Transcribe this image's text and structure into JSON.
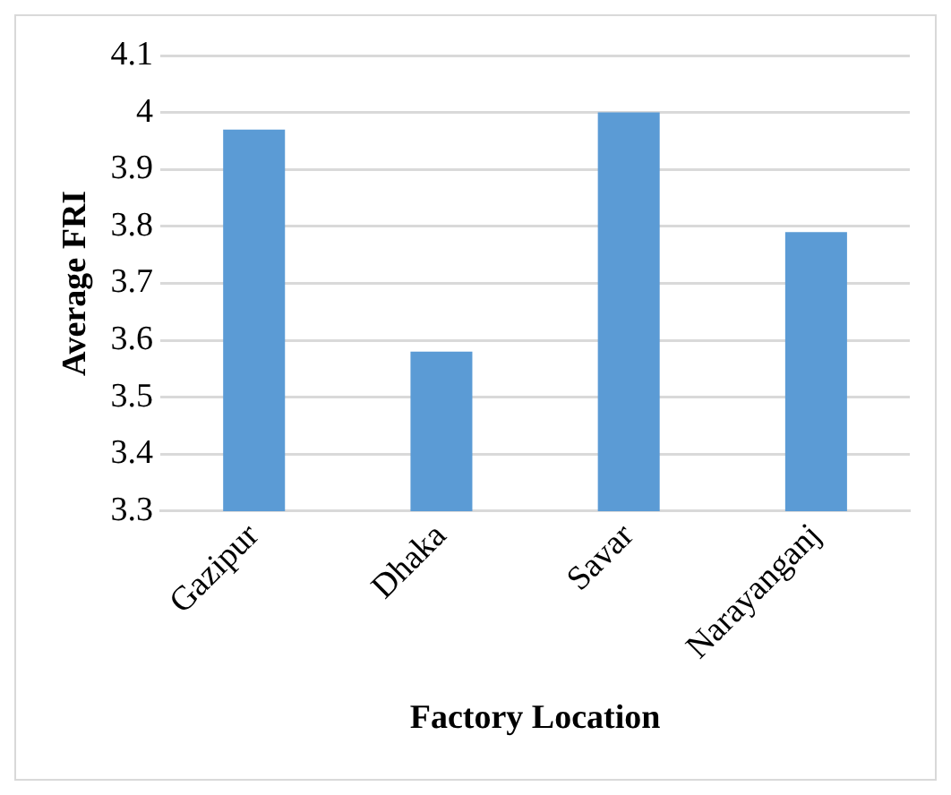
{
  "chart_data": {
    "type": "bar",
    "xlabel": "Factory Location",
    "ylabel": "Average FRI",
    "categories": [
      "Gazipur",
      "Dhaka",
      "Savar",
      "Narayanganj"
    ],
    "values": [
      3.97,
      3.58,
      4.0,
      3.79
    ],
    "color": "#5b9bd5",
    "ylim": [
      3.3,
      4.1
    ],
    "yticks": [
      3.3,
      3.4,
      3.5,
      3.6,
      3.7,
      3.8,
      3.9,
      {
        "value": 4,
        "label": "4"
      },
      4.1
    ],
    "grid": "y",
    "legend": false
  }
}
